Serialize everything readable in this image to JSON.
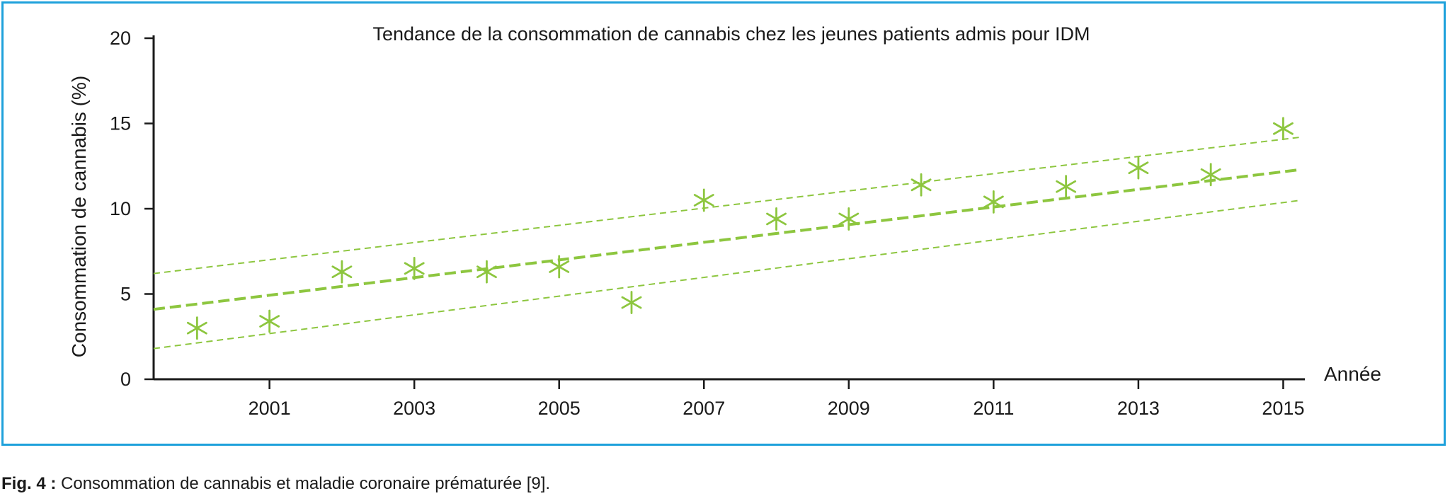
{
  "caption": {
    "label": "Fig. 4 :",
    "text": "Consommation de cannabis et maladie coronaire prématurée [9]."
  },
  "chart_data": {
    "type": "scatter",
    "title": "Tendance de la consommation de cannabis chez les jeunes patients admis pour IDM",
    "xlabel": "Année",
    "ylabel": "Consommation de cannabis (%)",
    "xlim": [
      1999.4,
      2015.25
    ],
    "ylim": [
      0,
      20
    ],
    "x_ticks": [
      2001,
      2003,
      2005,
      2007,
      2009,
      2011,
      2013,
      2015
    ],
    "y_ticks": [
      0,
      5,
      10,
      15,
      20
    ],
    "grid": false,
    "series": [
      {
        "marker": "asterisk",
        "x": [
          2000,
          2001,
          2002,
          2003,
          2004,
          2005,
          2006,
          2007,
          2008,
          2009,
          2010,
          2011,
          2012,
          2013,
          2014,
          2015
        ],
        "y": [
          3.0,
          3.4,
          6.3,
          6.5,
          6.3,
          6.6,
          4.5,
          10.5,
          9.4,
          9.4,
          11.4,
          10.4,
          11.3,
          12.4,
          12.0,
          14.7
        ]
      }
    ],
    "trend_lines": [
      {
        "style": "dashed-thick",
        "from": [
          1999.4,
          4.1
        ],
        "to": [
          2015.25,
          12.3
        ]
      },
      {
        "style": "dashed-thin",
        "from": [
          1999.4,
          6.2
        ],
        "to": [
          2015.25,
          14.2
        ]
      },
      {
        "style": "dashed-thin",
        "from": [
          1999.4,
          1.8
        ],
        "to": [
          2015.25,
          10.5
        ]
      }
    ],
    "colors": {
      "series": "#8dc63f",
      "axis": "#1a1a1a",
      "frame": "#1ea1db"
    }
  }
}
